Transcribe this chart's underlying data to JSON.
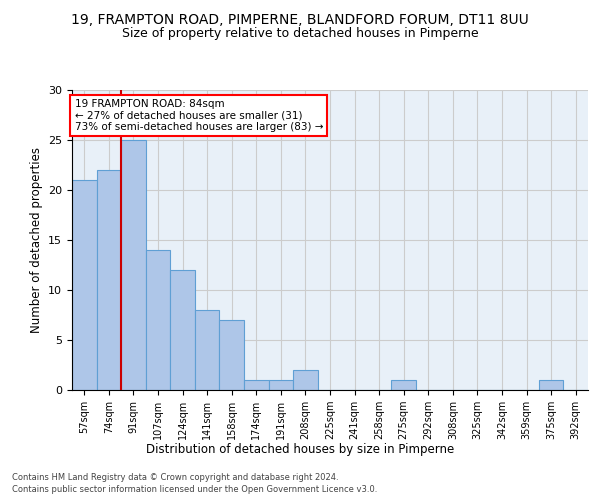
{
  "title": "19, FRAMPTON ROAD, PIMPERNE, BLANDFORD FORUM, DT11 8UU",
  "subtitle": "Size of property relative to detached houses in Pimperne",
  "xlabel": "Distribution of detached houses by size in Pimperne",
  "ylabel": "Number of detached properties",
  "categories": [
    "57sqm",
    "74sqm",
    "91sqm",
    "107sqm",
    "124sqm",
    "141sqm",
    "158sqm",
    "174sqm",
    "191sqm",
    "208sqm",
    "225sqm",
    "241sqm",
    "258sqm",
    "275sqm",
    "292sqm",
    "308sqm",
    "325sqm",
    "342sqm",
    "359sqm",
    "375sqm",
    "392sqm"
  ],
  "values": [
    21,
    22,
    25,
    14,
    12,
    8,
    7,
    1,
    1,
    2,
    0,
    0,
    0,
    1,
    0,
    0,
    0,
    0,
    0,
    1,
    0
  ],
  "bar_color": "#aec6e8",
  "bar_edge_color": "#5f9fd4",
  "annotation_text_line1": "19 FRAMPTON ROAD: 84sqm",
  "annotation_text_line2": "← 27% of detached houses are smaller (31)",
  "annotation_text_line3": "73% of semi-detached houses are larger (83) →",
  "annotation_box_color": "white",
  "annotation_box_edge_color": "red",
  "red_line_color": "#cc0000",
  "ylim": [
    0,
    30
  ],
  "yticks": [
    0,
    5,
    10,
    15,
    20,
    25,
    30
  ],
  "grid_color": "#cccccc",
  "bg_color": "#e8f0f8",
  "footer_line1": "Contains HM Land Registry data © Crown copyright and database right 2024.",
  "footer_line2": "Contains public sector information licensed under the Open Government Licence v3.0.",
  "title_fontsize": 10,
  "subtitle_fontsize": 9,
  "xlabel_fontsize": 8.5,
  "ylabel_fontsize": 8.5
}
